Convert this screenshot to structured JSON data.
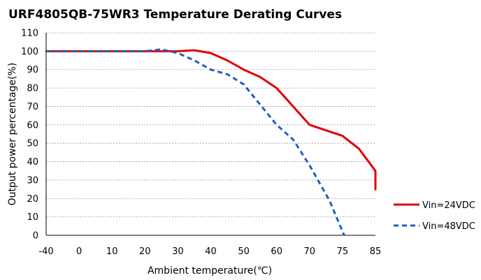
{
  "chart_data": {
    "type": "line",
    "title": "URF4805QB-75WR3 Temperature Derating Curves",
    "xlabel": "Ambient temperature(℃)",
    "ylabel": "Output power percentage(%)",
    "xlim": [
      -40,
      85
    ],
    "ylim": [
      0,
      110
    ],
    "x_ticks": [
      -40,
      0,
      10,
      20,
      30,
      40,
      50,
      60,
      70,
      75,
      85
    ],
    "y_ticks": [
      0,
      10,
      20,
      30,
      40,
      50,
      60,
      70,
      80,
      90,
      100,
      110
    ],
    "grid": "horizontal dashed",
    "legend_position": "right",
    "series": [
      {
        "name": "Vin=24VDC",
        "color": "#e00000",
        "style": "solid",
        "points": [
          [
            -40,
            100
          ],
          [
            20,
            100
          ],
          [
            25,
            100
          ],
          [
            30,
            100
          ],
          [
            35,
            100.5
          ],
          [
            40,
            99
          ],
          [
            45,
            95
          ],
          [
            50,
            90
          ],
          [
            55,
            86
          ],
          [
            60,
            80
          ],
          [
            65,
            70
          ],
          [
            70,
            60
          ],
          [
            75,
            54
          ],
          [
            80,
            47
          ],
          [
            85,
            35
          ],
          [
            88,
            25
          ]
        ]
      },
      {
        "name": "Vin=48VDC",
        "color": "#1f5fbf",
        "style": "dashed",
        "points": [
          [
            -40,
            100
          ],
          [
            20,
            100
          ],
          [
            25,
            101
          ],
          [
            30,
            99
          ],
          [
            35,
            95
          ],
          [
            40,
            90
          ],
          [
            45,
            87.5
          ],
          [
            50,
            82
          ],
          [
            55,
            71
          ],
          [
            60,
            60
          ],
          [
            65,
            52
          ],
          [
            70,
            38
          ],
          [
            73,
            19
          ],
          [
            75.5,
            0
          ]
        ]
      }
    ]
  }
}
